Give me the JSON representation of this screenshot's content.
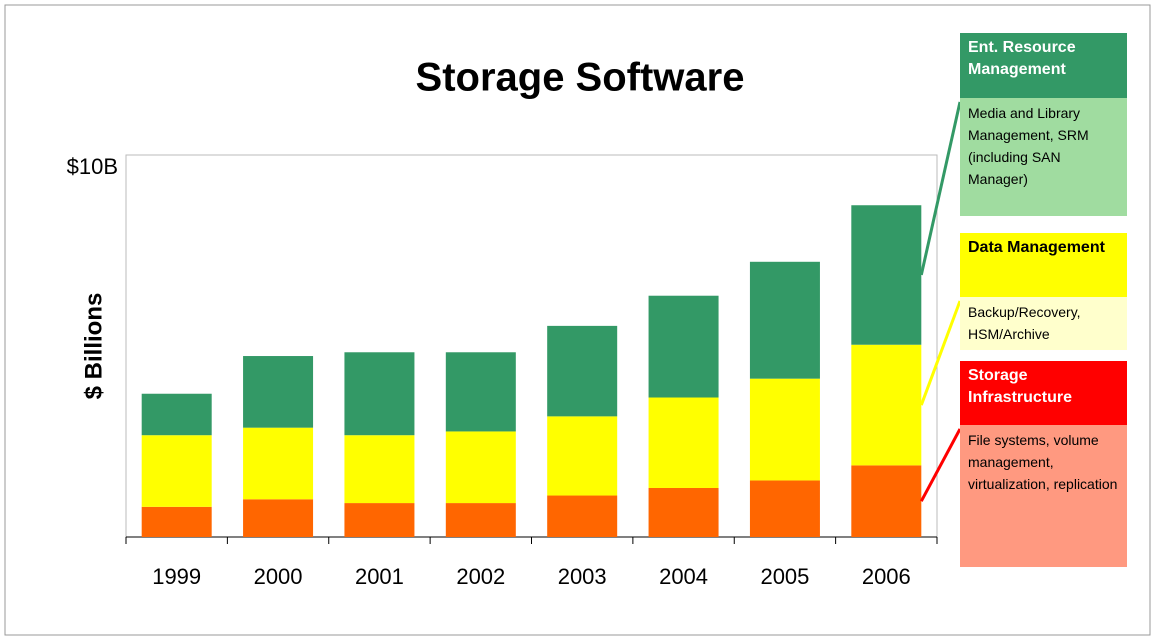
{
  "chart_data": {
    "type": "stacked_bar",
    "title": "Storage Software",
    "y_label": "$ Billions",
    "categories": [
      "1999",
      "2000",
      "2001",
      "2002",
      "2003",
      "2004",
      "2005",
      "2006"
    ],
    "ylim": [
      0,
      10
    ],
    "yticks": [
      {
        "value": 10,
        "label": "$10B"
      }
    ],
    "series": [
      {
        "name": "Storage Infrastructure",
        "color": "#ff6600",
        "header_color": "#ff0000",
        "header_text_color": "#ffffff",
        "description_color": "#ff9980",
        "description": "File systems, volume management, virtualization, replication",
        "values": [
          0.8,
          1.0,
          0.9,
          0.9,
          1.1,
          1.3,
          1.5,
          1.9
        ]
      },
      {
        "name": "Data Management",
        "color": "#ffff00",
        "header_color": "#ffff00",
        "header_text_color": "#000000",
        "description_color": "#ffffcc",
        "description": "Backup/Recovery, HSM/Archive",
        "values": [
          1.9,
          1.9,
          1.8,
          1.9,
          2.1,
          2.4,
          2.7,
          3.2
        ]
      },
      {
        "name": "Ent. Resource Management",
        "color": "#339966",
        "header_color": "#339966",
        "header_text_color": "#ffffff",
        "description_color": "#a0dca0",
        "description": "Media and Library Management, SRM (including SAN Manager)",
        "values": [
          1.1,
          1.9,
          2.2,
          2.1,
          2.4,
          2.7,
          3.1,
          3.7
        ]
      }
    ]
  }
}
